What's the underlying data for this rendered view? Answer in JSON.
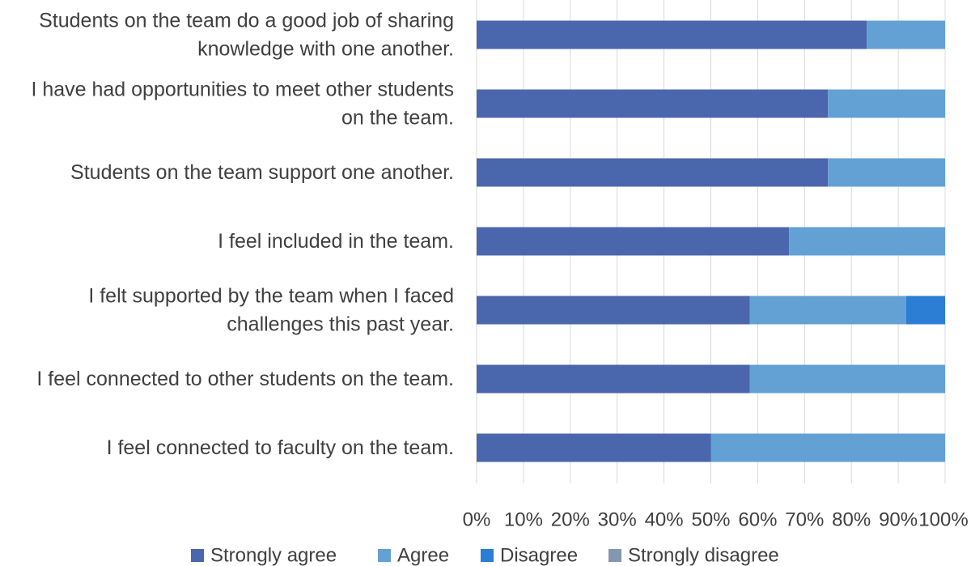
{
  "chart_data": {
    "type": "bar",
    "orientation": "horizontal",
    "stacked": true,
    "percent_stacked": true,
    "categories": [
      [
        "Students on the team do a good job of sharing",
        "knowledge with one another."
      ],
      [
        "I have had opportunities to meet other students",
        "on the team."
      ],
      [
        "Students on the team support one another."
      ],
      [
        "I feel included in the team."
      ],
      [
        "I felt supported by the team when I faced",
        "challenges this past year."
      ],
      [
        "I feel connected to other students on the team."
      ],
      [
        "I feel connected to faculty on the team."
      ]
    ],
    "series": [
      {
        "name": "Strongly agree",
        "color": "#4a66ad",
        "values": [
          83.3,
          75.0,
          75.0,
          66.7,
          58.3,
          58.3,
          50.0
        ]
      },
      {
        "name": "Agree",
        "color": "#63a0d4",
        "values": [
          16.7,
          25.0,
          25.0,
          33.3,
          33.4,
          41.7,
          50.0
        ]
      },
      {
        "name": "Disagree",
        "color": "#2c7dd4",
        "values": [
          0,
          0,
          0,
          0,
          8.3,
          0,
          0
        ]
      },
      {
        "name": "Strongly disagree",
        "color": "#8497b0",
        "values": [
          0,
          0,
          0,
          0,
          0,
          0,
          0
        ]
      }
    ],
    "xlim": [
      0,
      100
    ],
    "x_ticks": [
      "0%",
      "10%",
      "20%",
      "30%",
      "40%",
      "50%",
      "60%",
      "70%",
      "80%",
      "90%",
      "100%"
    ],
    "grid": true,
    "legend_position": "bottom"
  }
}
